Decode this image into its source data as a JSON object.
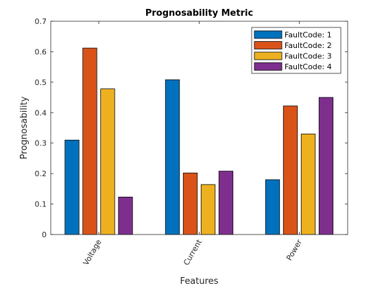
{
  "chart_data": {
    "type": "bar",
    "title": "Prognosability Metric",
    "xlabel": "Features",
    "ylabel": "Prognosability",
    "categories": [
      "Voltage",
      "Current",
      "Power"
    ],
    "ylim": [
      0,
      0.7
    ],
    "yticks": [
      "0",
      "0.1",
      "0.2",
      "0.3",
      "0.4",
      "0.5",
      "0.6",
      "0.7"
    ],
    "grid": false,
    "legend_location": "top-right",
    "series": [
      {
        "name": "FaultCode: 1",
        "color": "#0072BD",
        "values": [
          0.31,
          0.508,
          0.18
        ]
      },
      {
        "name": "FaultCode: 2",
        "color": "#D95319",
        "values": [
          0.612,
          0.202,
          0.422
        ]
      },
      {
        "name": "FaultCode: 3",
        "color": "#EDB120",
        "values": [
          0.478,
          0.164,
          0.33
        ]
      },
      {
        "name": "FaultCode: 4",
        "color": "#7E2F8E",
        "values": [
          0.123,
          0.208,
          0.45
        ]
      }
    ]
  }
}
